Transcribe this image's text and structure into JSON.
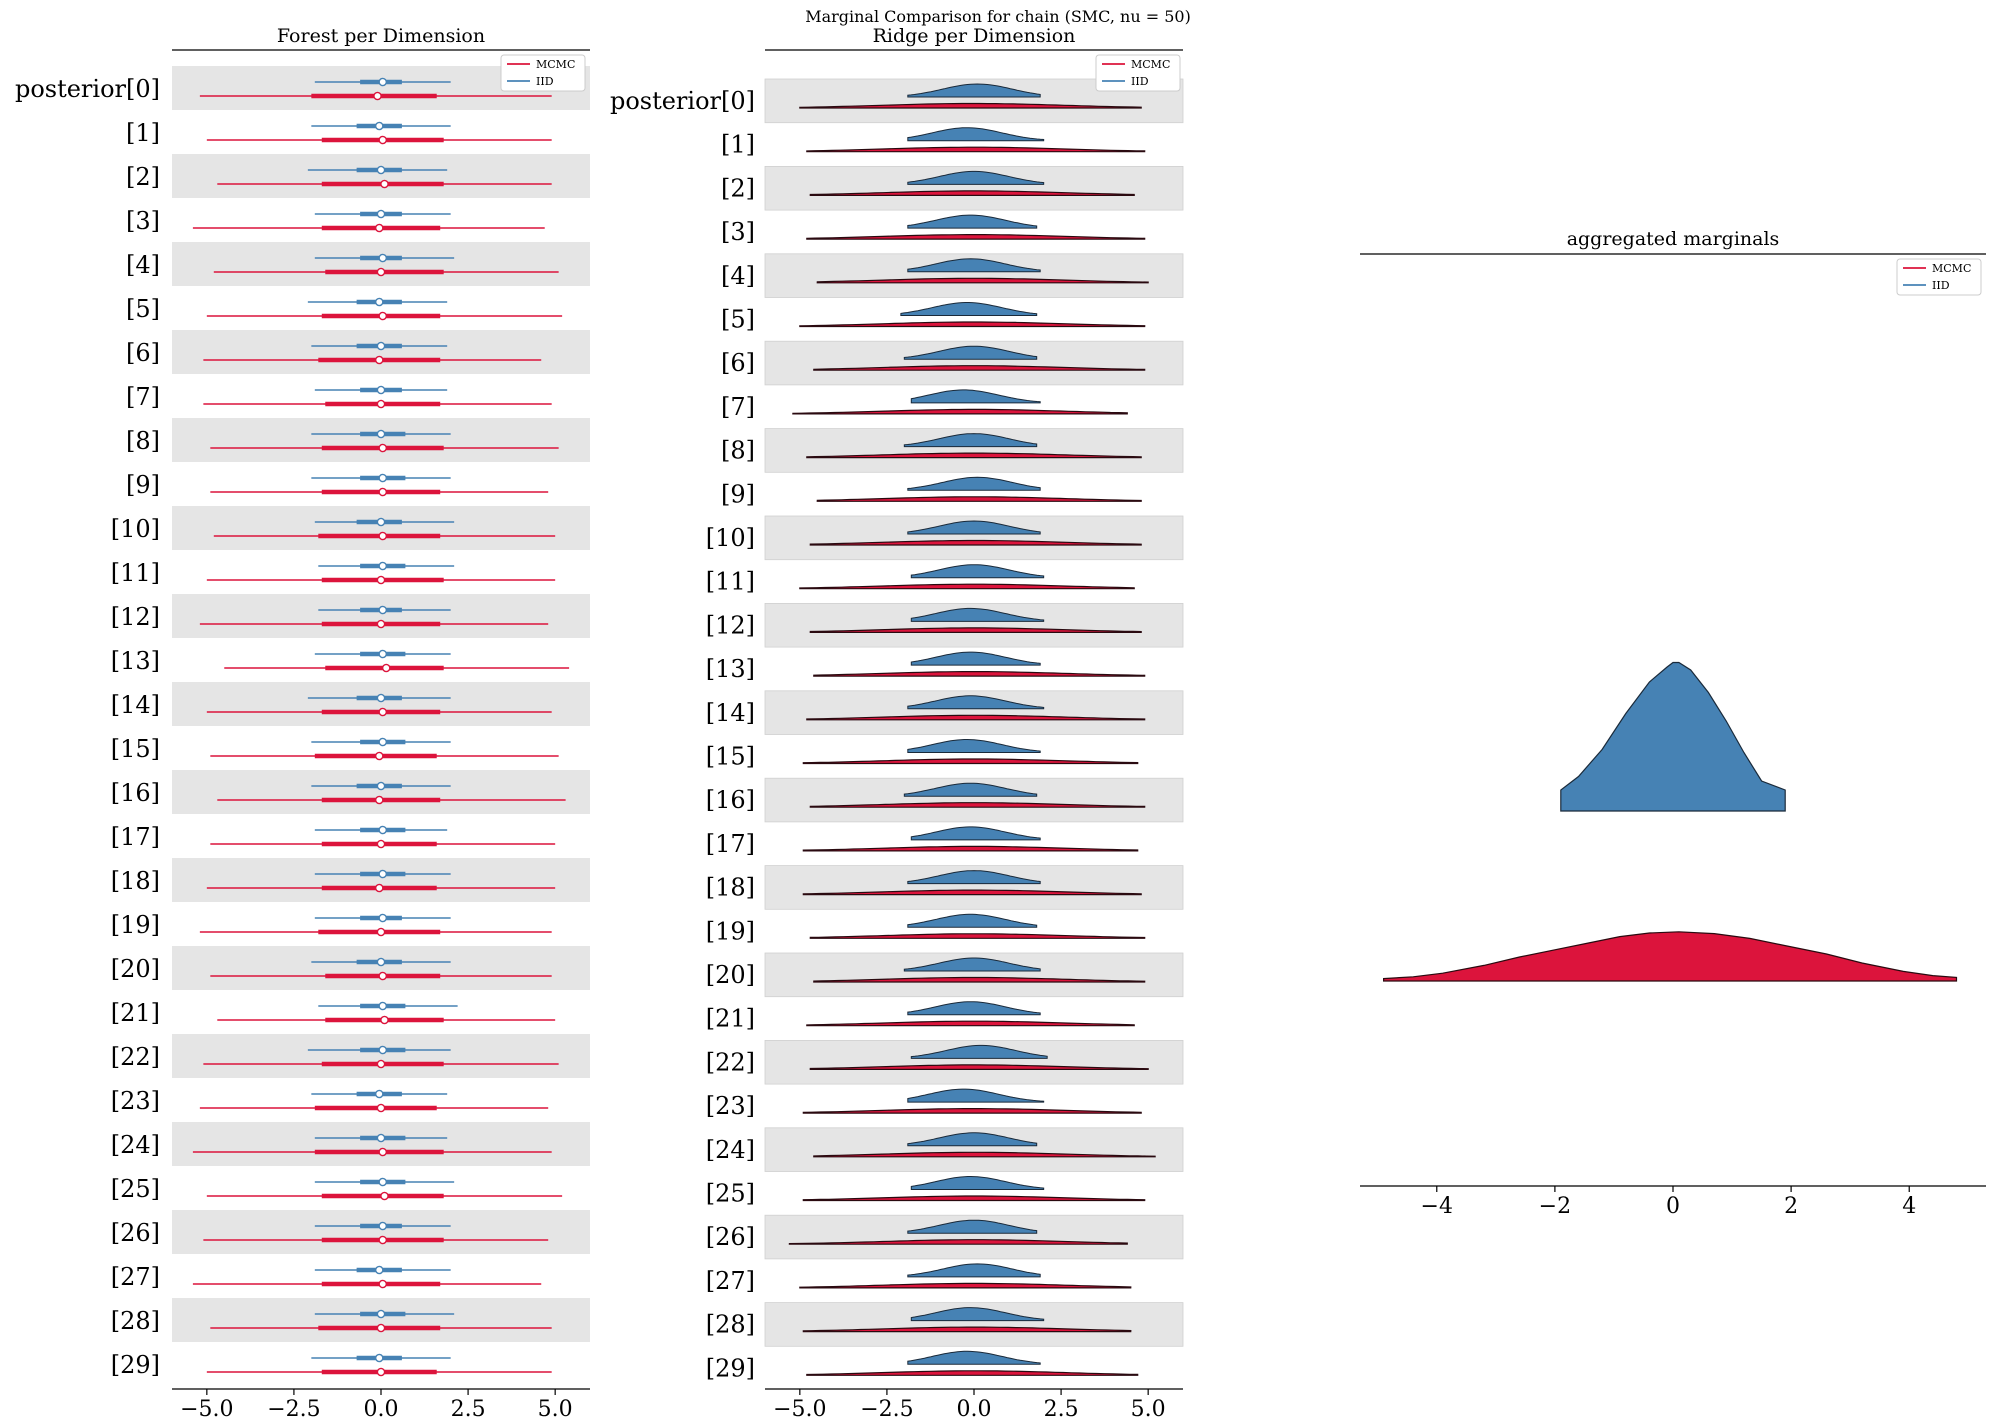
{
  "figure": {
    "suptitle": "Marginal Comparison for chain (SMC, nu = 50)"
  },
  "colors": {
    "mcmc": "#dc143c",
    "iid": "#4682b4",
    "band": "#e5e5e5"
  },
  "chart_data": [
    {
      "type": "forest",
      "title": "Forest per Dimension",
      "legend": [
        "MCMC",
        "IID"
      ],
      "legend_position": "top-right",
      "xlim": [
        -6.0,
        6.0
      ],
      "xticks": [
        -5.0,
        -2.5,
        0.0,
        2.5,
        5.0
      ],
      "xticklabels": [
        "−5.0",
        "−2.5",
        "0.0",
        "2.5",
        "5.0"
      ],
      "labels": [
        "posterior[0]",
        "[1]",
        "[2]",
        "[3]",
        "[4]",
        "[5]",
        "[6]",
        "[7]",
        "[8]",
        "[9]",
        "[10]",
        "[11]",
        "[12]",
        "[13]",
        "[14]",
        "[15]",
        "[16]",
        "[17]",
        "[18]",
        "[19]",
        "[20]",
        "[21]",
        "[22]",
        "[23]",
        "[24]",
        "[25]",
        "[26]",
        "[27]",
        "[28]",
        "[29]"
      ],
      "series": [
        {
          "name": "IID",
          "hdi94_low": [
            -1.9,
            -2.0,
            -2.1,
            -1.9,
            -1.9,
            -2.1,
            -2.0,
            -1.9,
            -2.0,
            -2.0,
            -1.9,
            -1.8,
            -1.8,
            -1.9,
            -2.1,
            -2.0,
            -2.0,
            -1.9,
            -1.9,
            -1.9,
            -2.0,
            -1.8,
            -2.1,
            -2.0,
            -1.9,
            -1.9,
            -1.9,
            -1.9,
            -1.9,
            -2.0
          ],
          "hdi94_high": [
            2.0,
            2.0,
            1.9,
            2.0,
            2.1,
            1.9,
            1.9,
            1.9,
            2.0,
            2.0,
            2.1,
            2.1,
            2.0,
            2.0,
            2.0,
            2.0,
            2.0,
            1.9,
            2.0,
            2.0,
            2.0,
            2.2,
            2.0,
            1.9,
            1.9,
            2.1,
            2.0,
            2.0,
            2.1,
            2.0
          ],
          "q25": [
            -0.6,
            -0.7,
            -0.7,
            -0.6,
            -0.6,
            -0.7,
            -0.7,
            -0.6,
            -0.6,
            -0.6,
            -0.7,
            -0.6,
            -0.6,
            -0.6,
            -0.7,
            -0.6,
            -0.7,
            -0.6,
            -0.6,
            -0.6,
            -0.7,
            -0.6,
            -0.6,
            -0.7,
            -0.6,
            -0.6,
            -0.6,
            -0.7,
            -0.6,
            -0.7
          ],
          "q75": [
            0.6,
            0.6,
            0.6,
            0.6,
            0.6,
            0.6,
            0.6,
            0.6,
            0.7,
            0.7,
            0.6,
            0.7,
            0.6,
            0.7,
            0.6,
            0.7,
            0.6,
            0.7,
            0.7,
            0.6,
            0.6,
            0.7,
            0.7,
            0.6,
            0.7,
            0.7,
            0.6,
            0.6,
            0.7,
            0.6
          ],
          "median": [
            0.05,
            -0.05,
            0.0,
            0.0,
            0.05,
            -0.05,
            0.0,
            0.0,
            0.0,
            0.05,
            0.0,
            0.05,
            0.05,
            0.05,
            0.0,
            0.05,
            0.0,
            0.05,
            0.05,
            0.05,
            0.0,
            0.05,
            0.05,
            -0.05,
            0.0,
            0.05,
            0.05,
            -0.05,
            0.0,
            -0.05
          ]
        },
        {
          "name": "MCMC",
          "hdi94_low": [
            -5.2,
            -5.0,
            -4.7,
            -5.4,
            -4.8,
            -5.0,
            -5.1,
            -5.1,
            -4.9,
            -4.9,
            -4.8,
            -5.0,
            -5.2,
            -4.5,
            -5.0,
            -4.9,
            -4.7,
            -4.9,
            -5.0,
            -5.2,
            -4.9,
            -4.7,
            -5.1,
            -5.2,
            -5.4,
            -5.0,
            -5.1,
            -5.4,
            -4.9,
            -5.0
          ],
          "hdi94_high": [
            4.9,
            4.9,
            4.9,
            4.7,
            5.1,
            5.2,
            4.6,
            4.9,
            5.1,
            4.8,
            5.0,
            5.0,
            4.8,
            5.4,
            4.9,
            5.1,
            5.3,
            5.0,
            5.0,
            4.9,
            4.9,
            5.0,
            5.1,
            4.8,
            4.9,
            5.2,
            4.8,
            4.6,
            4.9,
            4.9
          ],
          "q25": [
            -2.0,
            -1.7,
            -1.7,
            -1.7,
            -1.6,
            -1.7,
            -1.8,
            -1.6,
            -1.7,
            -1.7,
            -1.8,
            -1.7,
            -1.7,
            -1.6,
            -1.7,
            -1.9,
            -1.7,
            -1.7,
            -1.7,
            -1.8,
            -1.6,
            -1.6,
            -1.7,
            -1.9,
            -1.9,
            -1.7,
            -1.7,
            -1.7,
            -1.8,
            -1.7
          ],
          "q75": [
            1.6,
            1.8,
            1.8,
            1.7,
            1.8,
            1.7,
            1.7,
            1.7,
            1.8,
            1.7,
            1.7,
            1.8,
            1.7,
            1.8,
            1.7,
            1.6,
            1.7,
            1.6,
            1.6,
            1.7,
            1.7,
            1.8,
            1.8,
            1.6,
            1.8,
            1.8,
            1.8,
            1.7,
            1.7,
            1.6
          ],
          "median": [
            -0.1,
            0.05,
            0.1,
            -0.05,
            0.0,
            0.05,
            -0.05,
            0.0,
            0.05,
            0.05,
            0.05,
            0.0,
            0.0,
            0.15,
            0.05,
            -0.05,
            -0.05,
            0.0,
            -0.05,
            0.0,
            0.05,
            0.1,
            0.0,
            0.0,
            0.05,
            0.1,
            0.05,
            0.05,
            0.0,
            0.0
          ]
        }
      ]
    },
    {
      "type": "ridge",
      "title": "Ridge per Dimension",
      "legend": [
        "MCMC",
        "IID"
      ],
      "legend_position": "top-right",
      "xlim": [
        -6.0,
        6.0
      ],
      "xticks": [
        -5.0,
        -2.5,
        0.0,
        2.5,
        5.0
      ],
      "xticklabels": [
        "−5.0",
        "−2.5",
        "0.0",
        "2.5",
        "5.0"
      ],
      "labels": [
        "posterior[0]",
        "[1]",
        "[2]",
        "[3]",
        "[4]",
        "[5]",
        "[6]",
        "[7]",
        "[8]",
        "[9]",
        "[10]",
        "[11]",
        "[12]",
        "[13]",
        "[14]",
        "[15]",
        "[16]",
        "[17]",
        "[18]",
        "[19]",
        "[20]",
        "[21]",
        "[22]",
        "[23]",
        "[24]",
        "[25]",
        "[26]",
        "[27]",
        "[28]",
        "[29]"
      ],
      "series": [
        {
          "name": "IID",
          "min": [
            -1.9,
            -1.9,
            -1.9,
            -1.9,
            -1.9,
            -2.1,
            -2.0,
            -1.8,
            -2.0,
            -1.9,
            -1.9,
            -1.8,
            -1.8,
            -1.8,
            -1.9,
            -1.9,
            -2.0,
            -1.8,
            -1.9,
            -1.9,
            -2.0,
            -1.9,
            -1.8,
            -1.9,
            -1.9,
            -1.8,
            -1.9,
            -1.9,
            -1.8,
            -1.9
          ],
          "max": [
            1.9,
            2.0,
            2.0,
            1.8,
            1.9,
            1.8,
            1.8,
            1.9,
            1.8,
            1.9,
            1.9,
            2.0,
            2.0,
            1.9,
            2.0,
            1.9,
            1.8,
            1.9,
            1.9,
            1.8,
            1.9,
            1.9,
            2.1,
            2.0,
            1.8,
            2.0,
            1.8,
            1.9,
            2.0,
            1.9
          ],
          "center": [
            0.1,
            -0.2,
            0.0,
            -0.1,
            -0.1,
            -0.2,
            0.0,
            -0.3,
            0.0,
            0.1,
            0.0,
            0.0,
            -0.1,
            -0.1,
            -0.1,
            -0.2,
            -0.1,
            -0.1,
            0.0,
            -0.1,
            0.0,
            -0.1,
            0.2,
            -0.3,
            0.0,
            -0.1,
            0.0,
            0.1,
            -0.1,
            -0.2
          ]
        },
        {
          "name": "MCMC",
          "min": [
            -5.0,
            -4.8,
            -4.7,
            -4.8,
            -4.5,
            -5.0,
            -4.6,
            -5.2,
            -4.8,
            -4.5,
            -4.7,
            -5.0,
            -4.7,
            -4.6,
            -4.8,
            -4.9,
            -4.7,
            -4.9,
            -4.9,
            -4.7,
            -4.6,
            -4.8,
            -4.7,
            -4.9,
            -4.6,
            -4.9,
            -5.3,
            -5.0,
            -4.9,
            -4.8
          ],
          "max": [
            4.8,
            4.9,
            4.6,
            4.9,
            5.0,
            4.9,
            4.9,
            4.4,
            4.8,
            4.8,
            4.8,
            4.6,
            4.8,
            4.9,
            4.9,
            4.7,
            4.9,
            4.7,
            4.8,
            4.9,
            4.9,
            4.6,
            5.0,
            4.8,
            5.2,
            4.9,
            4.4,
            4.5,
            4.5,
            4.7
          ],
          "center": [
            0.0,
            0.0,
            0.0,
            0.0,
            0.0,
            0.0,
            0.0,
            0.0,
            0.0,
            0.0,
            0.0,
            0.0,
            0.0,
            0.0,
            0.0,
            0.0,
            0.0,
            0.0,
            0.0,
            0.0,
            0.0,
            0.0,
            0.0,
            0.0,
            0.0,
            0.0,
            0.0,
            0.0,
            0.0,
            0.0
          ]
        }
      ]
    },
    {
      "type": "ridge",
      "title": "aggregated marginals",
      "legend": [
        "MCMC",
        "IID"
      ],
      "legend_position": "top-right",
      "xlim": [
        -5.3,
        5.3
      ],
      "xticks": [
        -4,
        -2,
        0,
        2,
        4
      ],
      "xticklabels": [
        "−4",
        "−2",
        "0",
        "2",
        "4"
      ],
      "series": [
        {
          "name": "IID",
          "x": [
            -1.9,
            -1.6,
            -1.2,
            -0.8,
            -0.4,
            -0.1,
            0.0,
            0.1,
            0.3,
            0.6,
            0.9,
            1.2,
            1.5,
            1.9
          ],
          "density": [
            0.14,
            0.23,
            0.41,
            0.65,
            0.86,
            0.96,
            0.99,
            0.99,
            0.94,
            0.79,
            0.6,
            0.39,
            0.2,
            0.14
          ]
        },
        {
          "name": "MCMC",
          "x": [
            -4.9,
            -4.4,
            -3.9,
            -3.2,
            -2.6,
            -2.0,
            -1.4,
            -0.9,
            -0.4,
            0.1,
            0.7,
            1.3,
            1.9,
            2.6,
            3.2,
            3.9,
            4.4,
            4.8
          ],
          "density": [
            0.04,
            0.07,
            0.13,
            0.26,
            0.4,
            0.52,
            0.64,
            0.74,
            0.8,
            0.82,
            0.79,
            0.71,
            0.59,
            0.45,
            0.3,
            0.16,
            0.09,
            0.06
          ]
        }
      ]
    }
  ]
}
